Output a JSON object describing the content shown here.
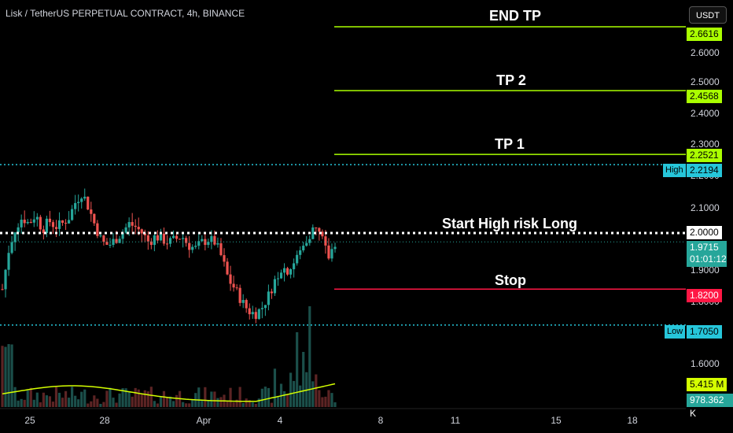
{
  "header": {
    "symbol_title": "Lisk / TetherUS PERPETUAL CONTRACT, 4h, BINANCE",
    "currency_button": "USDT"
  },
  "annotations": {
    "end_tp": "END TP",
    "tp2": "TP 2",
    "tp1": "TP 1",
    "entry": "Start High risk Long",
    "stop": "Stop"
  },
  "price_axis": {
    "ticks": [
      "2.6000",
      "2.5000",
      "2.4000",
      "2.3000",
      "2.2000",
      "2.1000",
      "1.9000",
      "1.8000",
      "1.6000"
    ]
  },
  "price_labels": {
    "end_tp": "2.6616",
    "tp2": "2.4568",
    "tp1": "2.2521",
    "high_tag": "High",
    "high": "2.2194",
    "entry": "2.0000",
    "current": "1.9715",
    "countdown": "01:01:12",
    "stop": "1.8200",
    "low_tag": "Low",
    "low": "1.7050",
    "volume_ma": "5.415 M",
    "volume": "978.362 K"
  },
  "time_axis": {
    "labels": [
      "25",
      "28",
      "Apr",
      "4",
      "8",
      "11",
      "15",
      "18"
    ]
  },
  "colors": {
    "background": "#000000",
    "target_line": "#aaff00",
    "stop_line": "#ff1744",
    "entry_line": "#ffffff",
    "high_low_line": "#26c6da",
    "up_candle": "#26a69a",
    "down_candle": "#ef5350",
    "volume_ma": "#d4ff00",
    "current_price": "#26a69a"
  },
  "chart_data": {
    "type": "candlestick",
    "title": "Lisk / TetherUS PERPETUAL CONTRACT, 4h, BINANCE",
    "timeframe": "4h",
    "levels": [
      {
        "name": "END TP",
        "value": 2.6616
      },
      {
        "name": "TP 2",
        "value": 2.4568
      },
      {
        "name": "TP 1",
        "value": 2.2521
      },
      {
        "name": "High",
        "value": 2.2194
      },
      {
        "name": "Start High risk Long",
        "value": 2.0
      },
      {
        "name": "Stop",
        "value": 1.82
      },
      {
        "name": "Low",
        "value": 1.705
      }
    ],
    "last_price": 1.9715,
    "price_range": [
      1.55,
      2.7
    ],
    "close_path": [
      1.82,
      1.95,
      2.02,
      2.05,
      2.03,
      2.06,
      2.01,
      2.04,
      2.02,
      2.03,
      2.05,
      2.1,
      2.13,
      2.08,
      2.02,
      1.97,
      1.96,
      1.98,
      2.0,
      2.03,
      2.02,
      2.0,
      1.97,
      1.99,
      1.98,
      1.97,
      1.98,
      1.99,
      1.96,
      1.95,
      1.97,
      1.98,
      1.97,
      1.92,
      1.85,
      1.82,
      1.78,
      1.75,
      1.74,
      1.76,
      1.8,
      1.85,
      1.89,
      1.88,
      1.91,
      1.95,
      1.99,
      2.02,
      1.98,
      1.92,
      1.97
    ],
    "volume_last": 978362,
    "volume_ma": 5415000,
    "x_labels": [
      "25",
      "28",
      "Apr",
      "4",
      "8",
      "11",
      "15",
      "18"
    ]
  }
}
